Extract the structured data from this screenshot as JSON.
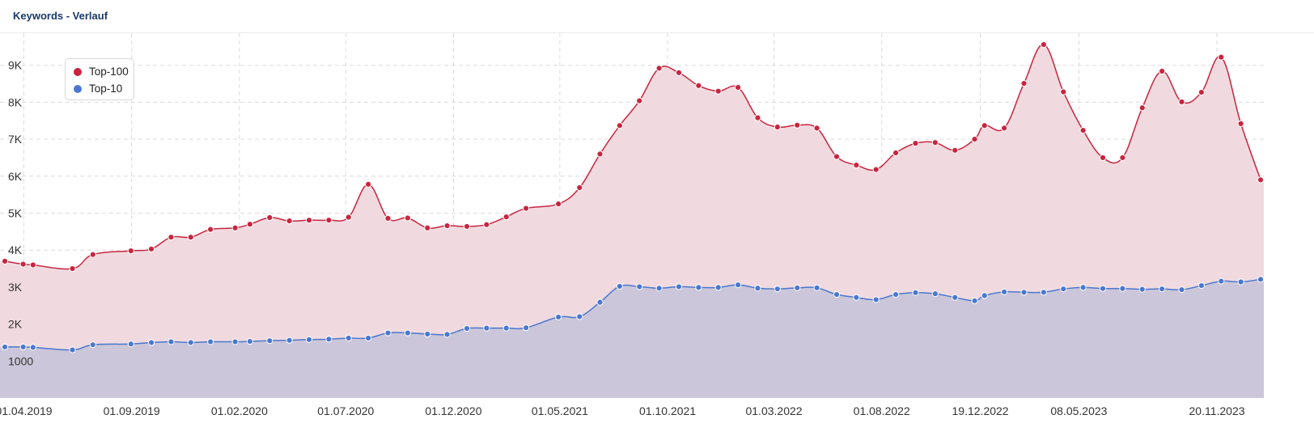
{
  "header": {
    "title": "Keywords - Verlauf"
  },
  "chart_data": {
    "type": "area",
    "title": "Keywords - Verlauf",
    "xlabel": "",
    "ylabel": "",
    "ylim": [
      0,
      10000
    ],
    "grid": true,
    "legend_position": "top-left",
    "y_ticks": [
      {
        "value": 1000,
        "label": "1000"
      },
      {
        "value": 2000,
        "label": "2K"
      },
      {
        "value": 3000,
        "label": "3K"
      },
      {
        "value": 4000,
        "label": "4K"
      },
      {
        "value": 5000,
        "label": "5K"
      },
      {
        "value": 6000,
        "label": "6K"
      },
      {
        "value": 7000,
        "label": "7K"
      },
      {
        "value": 8000,
        "label": "8K"
      },
      {
        "value": 9000,
        "label": "9K"
      }
    ],
    "x_ticks": [
      {
        "date": "2019-04-01",
        "label": "01.04.2019"
      },
      {
        "date": "2019-09-01",
        "label": "01.09.2019"
      },
      {
        "date": "2020-02-01",
        "label": "01.02.2020"
      },
      {
        "date": "2020-07-01",
        "label": "01.07.2020"
      },
      {
        "date": "2020-12-01",
        "label": "01.12.2020"
      },
      {
        "date": "2021-05-01",
        "label": "01.05.2021"
      },
      {
        "date": "2021-10-01",
        "label": "01.10.2021"
      },
      {
        "date": "2022-03-01",
        "label": "01.03.2022"
      },
      {
        "date": "2022-08-01",
        "label": "01.08.2022"
      },
      {
        "date": "2022-12-19",
        "label": "19.12.2022"
      },
      {
        "date": "2023-05-08",
        "label": "08.05.2023"
      },
      {
        "date": "2023-11-20",
        "label": "20.11.2023"
      }
    ],
    "series": [
      {
        "name": "Top-100",
        "color": "#c8253f",
        "fill": "#f0dadf",
        "points": [
          [
            "2019-03-05",
            3700
          ],
          [
            "2019-03-31",
            3620
          ],
          [
            "2019-04-14",
            3600
          ],
          [
            "2019-06-09",
            3500
          ],
          [
            "2019-07-08",
            3880
          ],
          [
            "2019-08-31",
            3980
          ],
          [
            "2019-09-29",
            4030
          ],
          [
            "2019-10-27",
            4350
          ],
          [
            "2019-11-24",
            4350
          ],
          [
            "2019-12-22",
            4560
          ],
          [
            "2020-01-26",
            4600
          ],
          [
            "2020-02-16",
            4700
          ],
          [
            "2020-03-15",
            4880
          ],
          [
            "2020-04-12",
            4790
          ],
          [
            "2020-05-10",
            4810
          ],
          [
            "2020-06-07",
            4810
          ],
          [
            "2020-07-05",
            4890
          ],
          [
            "2020-08-02",
            5780
          ],
          [
            "2020-08-30",
            4860
          ],
          [
            "2020-09-27",
            4870
          ],
          [
            "2020-10-25",
            4600
          ],
          [
            "2020-11-22",
            4660
          ],
          [
            "2020-12-20",
            4640
          ],
          [
            "2021-01-17",
            4690
          ],
          [
            "2021-02-14",
            4900
          ],
          [
            "2021-03-14",
            5130
          ],
          [
            "2021-04-29",
            5250
          ],
          [
            "2021-05-29",
            5690
          ],
          [
            "2021-06-27",
            6600
          ],
          [
            "2021-07-25",
            7370
          ],
          [
            "2021-08-22",
            8040
          ],
          [
            "2021-09-19",
            8920
          ],
          [
            "2021-10-17",
            8800
          ],
          [
            "2021-11-14",
            8450
          ],
          [
            "2021-12-12",
            8300
          ],
          [
            "2022-01-09",
            8400
          ],
          [
            "2022-02-06",
            7580
          ],
          [
            "2022-03-06",
            7330
          ],
          [
            "2022-04-03",
            7380
          ],
          [
            "2022-05-01",
            7300
          ],
          [
            "2022-05-29",
            6530
          ],
          [
            "2022-06-26",
            6300
          ],
          [
            "2022-07-24",
            6180
          ],
          [
            "2022-08-21",
            6630
          ],
          [
            "2022-09-18",
            6890
          ],
          [
            "2022-10-16",
            6910
          ],
          [
            "2022-11-13",
            6700
          ],
          [
            "2022-12-11",
            7000
          ],
          [
            "2022-12-25",
            7370
          ],
          [
            "2023-01-22",
            7300
          ],
          [
            "2023-02-19",
            8510
          ],
          [
            "2023-03-19",
            9560
          ],
          [
            "2023-04-16",
            8280
          ],
          [
            "2023-05-14",
            7240
          ],
          [
            "2023-06-11",
            6500
          ],
          [
            "2023-07-09",
            6500
          ],
          [
            "2023-08-06",
            7850
          ],
          [
            "2023-09-03",
            8840
          ],
          [
            "2023-10-01",
            8010
          ],
          [
            "2023-10-29",
            8270
          ],
          [
            "2023-11-26",
            9220
          ],
          [
            "2023-12-24",
            7420
          ],
          [
            "2024-01-21",
            5900
          ]
        ]
      },
      {
        "name": "Top-10",
        "color": "#4a78cf",
        "fill": "#cbc6d9",
        "points": [
          [
            "2019-03-05",
            1380
          ],
          [
            "2019-03-31",
            1380
          ],
          [
            "2019-04-14",
            1370
          ],
          [
            "2019-06-09",
            1300
          ],
          [
            "2019-07-08",
            1440
          ],
          [
            "2019-08-31",
            1460
          ],
          [
            "2019-09-29",
            1500
          ],
          [
            "2019-10-27",
            1520
          ],
          [
            "2019-11-24",
            1500
          ],
          [
            "2019-12-22",
            1520
          ],
          [
            "2020-01-26",
            1520
          ],
          [
            "2020-02-16",
            1530
          ],
          [
            "2020-03-15",
            1550
          ],
          [
            "2020-04-12",
            1560
          ],
          [
            "2020-05-10",
            1580
          ],
          [
            "2020-06-07",
            1590
          ],
          [
            "2020-07-05",
            1620
          ],
          [
            "2020-08-02",
            1620
          ],
          [
            "2020-08-30",
            1760
          ],
          [
            "2020-09-27",
            1760
          ],
          [
            "2020-10-25",
            1730
          ],
          [
            "2020-11-22",
            1720
          ],
          [
            "2020-12-20",
            1880
          ],
          [
            "2021-01-17",
            1890
          ],
          [
            "2021-02-14",
            1890
          ],
          [
            "2021-03-14",
            1900
          ],
          [
            "2021-04-29",
            2190
          ],
          [
            "2021-05-29",
            2200
          ],
          [
            "2021-06-27",
            2590
          ],
          [
            "2021-07-25",
            3020
          ],
          [
            "2021-08-22",
            3010
          ],
          [
            "2021-09-19",
            2970
          ],
          [
            "2021-10-17",
            3010
          ],
          [
            "2021-11-14",
            2990
          ],
          [
            "2021-12-12",
            2990
          ],
          [
            "2022-01-09",
            3060
          ],
          [
            "2022-02-06",
            2970
          ],
          [
            "2022-03-06",
            2950
          ],
          [
            "2022-04-03",
            2980
          ],
          [
            "2022-05-01",
            2980
          ],
          [
            "2022-05-29",
            2800
          ],
          [
            "2022-06-26",
            2720
          ],
          [
            "2022-07-24",
            2660
          ],
          [
            "2022-08-21",
            2800
          ],
          [
            "2022-09-18",
            2850
          ],
          [
            "2022-10-16",
            2820
          ],
          [
            "2022-11-13",
            2720
          ],
          [
            "2022-12-11",
            2630
          ],
          [
            "2022-12-25",
            2770
          ],
          [
            "2023-01-22",
            2870
          ],
          [
            "2023-02-19",
            2860
          ],
          [
            "2023-03-19",
            2860
          ],
          [
            "2023-04-16",
            2950
          ],
          [
            "2023-05-14",
            2990
          ],
          [
            "2023-06-11",
            2960
          ],
          [
            "2023-07-09",
            2960
          ],
          [
            "2023-08-06",
            2940
          ],
          [
            "2023-09-03",
            2950
          ],
          [
            "2023-10-01",
            2930
          ],
          [
            "2023-10-29",
            3040
          ],
          [
            "2023-11-26",
            3160
          ],
          [
            "2023-12-24",
            3140
          ],
          [
            "2024-01-21",
            3210
          ]
        ]
      }
    ]
  }
}
